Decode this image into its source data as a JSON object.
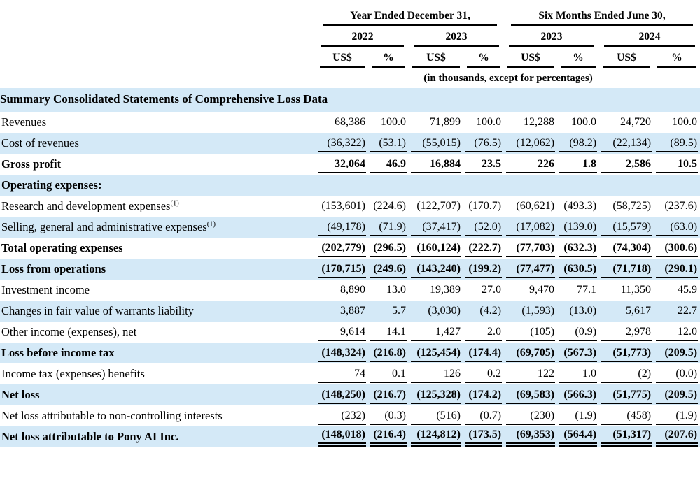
{
  "colors": {
    "stripe": "#d4e9f7",
    "rule": "#000000",
    "text": "#000000"
  },
  "table": {
    "col_groups": [
      {
        "label": "Year Ended December 31,",
        "years": [
          "2022",
          "2023"
        ]
      },
      {
        "label": "Six Months Ended June 30,",
        "years": [
          "2023",
          "2024"
        ]
      }
    ],
    "unit_headers": [
      "US$",
      "%",
      "US$",
      "%",
      "US$",
      "%",
      "US$",
      "%"
    ],
    "units_note": "(in thousands, except for percentages)",
    "section_title": "Summary Consolidated Statements of Comprehensive Loss Data",
    "rows": [
      {
        "label": "Revenues",
        "bold": false,
        "shaded": false,
        "underline": "none",
        "values": [
          "68,386",
          "100.0",
          "71,899",
          "100.0",
          "12,288",
          "100.0",
          "24,720",
          "100.0"
        ]
      },
      {
        "label": "Cost of revenues",
        "bold": false,
        "shaded": true,
        "underline": "single",
        "values": [
          "(36,322)",
          "(53.1)",
          "(55,015)",
          "(76.5)",
          "(12,062)",
          "(98.2)",
          "(22,134)",
          "(89.5)"
        ]
      },
      {
        "label": "Gross profit",
        "bold": true,
        "shaded": false,
        "underline": "single",
        "values": [
          "32,064",
          "46.9",
          "16,884",
          "23.5",
          "226",
          "1.8",
          "2,586",
          "10.5"
        ]
      },
      {
        "label": "Operating expenses:",
        "bold": true,
        "shaded": true,
        "underline": "none",
        "values": [
          "",
          "",
          "",
          "",
          "",
          "",
          "",
          ""
        ]
      },
      {
        "label": "Research and development expenses",
        "sup": "(1)",
        "bold": false,
        "shaded": false,
        "underline": "none",
        "values": [
          "(153,601)",
          "(224.6)",
          "(122,707)",
          "(170.7)",
          "(60,621)",
          "(493.3)",
          "(58,725)",
          "(237.6)"
        ]
      },
      {
        "label": "Selling, general and administrative expenses",
        "sup": "(1)",
        "bold": false,
        "shaded": true,
        "underline": "single",
        "values": [
          "(49,178)",
          "(71.9)",
          "(37,417)",
          "(52.0)",
          "(17,082)",
          "(139.0)",
          "(15,579)",
          "(63.0)"
        ]
      },
      {
        "label": "Total operating expenses",
        "bold": true,
        "shaded": false,
        "underline": "single",
        "values": [
          "(202,779)",
          "(296.5)",
          "(160,124)",
          "(222.7)",
          "(77,703)",
          "(632.3)",
          "(74,304)",
          "(300.6)"
        ]
      },
      {
        "label": "Loss from operations",
        "bold": true,
        "shaded": true,
        "underline": "single",
        "values": [
          "(170,715)",
          "(249.6)",
          "(143,240)",
          "(199.2)",
          "(77,477)",
          "(630.5)",
          "(71,718)",
          "(290.1)"
        ]
      },
      {
        "label": "Investment income",
        "bold": false,
        "shaded": false,
        "underline": "none",
        "values": [
          "8,890",
          "13.0",
          "19,389",
          "27.0",
          "9,470",
          "77.1",
          "11,350",
          "45.9"
        ]
      },
      {
        "label": "Changes in fair value of warrants liability",
        "bold": false,
        "shaded": true,
        "underline": "none",
        "values": [
          "3,887",
          "5.7",
          "(3,030)",
          "(4.2)",
          "(1,593)",
          "(13.0)",
          "5,617",
          "22.7"
        ]
      },
      {
        "label": "Other income (expenses), net",
        "bold": false,
        "shaded": false,
        "underline": "single",
        "values": [
          "9,614",
          "14.1",
          "1,427",
          "2.0",
          "(105)",
          "(0.9)",
          "2,978",
          "12.0"
        ]
      },
      {
        "label": "Loss before income tax",
        "bold": true,
        "shaded": true,
        "underline": "single",
        "values": [
          "(148,324)",
          "(216.8)",
          "(125,454)",
          "(174.4)",
          "(69,705)",
          "(567.3)",
          "(51,773)",
          "(209.5)"
        ]
      },
      {
        "label": "Income tax (expenses) benefits",
        "bold": false,
        "shaded": false,
        "underline": "single",
        "values": [
          "74",
          "0.1",
          "126",
          "0.2",
          "122",
          "1.0",
          "(2)",
          "(0.0)"
        ]
      },
      {
        "label": "Net loss",
        "bold": true,
        "shaded": true,
        "underline": "single",
        "values": [
          "(148,250)",
          "(216.7)",
          "(125,328)",
          "(174.2)",
          "(69,583)",
          "(566.3)",
          "(51,775)",
          "(209.5)"
        ]
      },
      {
        "label": "Net loss attributable to non-controlling interests",
        "bold": false,
        "shaded": false,
        "underline": "single",
        "values": [
          "(232)",
          "(0.3)",
          "(516)",
          "(0.7)",
          "(230)",
          "(1.9)",
          "(458)",
          "(1.9)"
        ]
      },
      {
        "label": "Net loss attributable to Pony AI Inc.",
        "bold": true,
        "shaded": true,
        "underline": "double",
        "values": [
          "(148,018)",
          "(216.4)",
          "(124,812)",
          "(173.5)",
          "(69,353)",
          "(564.4)",
          "(51,317)",
          "(207.6)"
        ]
      }
    ]
  }
}
